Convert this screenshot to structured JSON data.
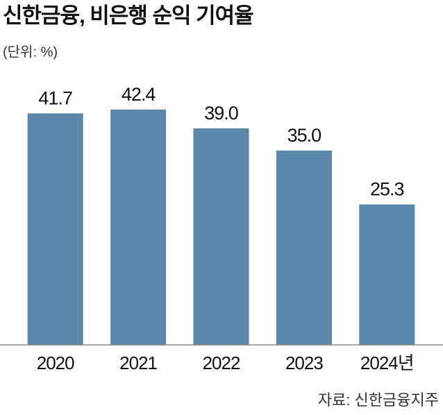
{
  "chart_data": {
    "type": "bar",
    "title": "신한금융, 비은행 순익 기여율",
    "subtitle": "(단위: %)",
    "categories": [
      "2020",
      "2021",
      "2022",
      "2023",
      "2024년"
    ],
    "values": [
      41.7,
      42.4,
      39.0,
      35.0,
      25.3
    ],
    "value_labels": [
      "41.7",
      "42.4",
      "39.0",
      "35.0",
      "25.3"
    ],
    "color": "#5b87ab",
    "ylim": [
      0,
      50
    ],
    "source": "자료: 신한금융지주"
  }
}
